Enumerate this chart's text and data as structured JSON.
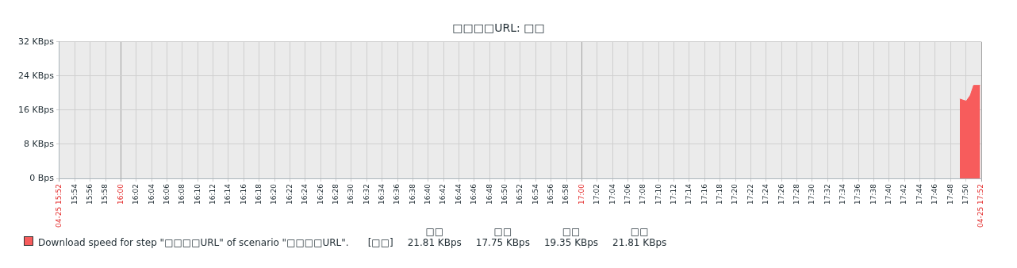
{
  "chart_data": {
    "type": "area",
    "title": "□□□□URL: □□",
    "x": [
      17.82,
      17.826,
      17.834,
      17.843,
      17.85,
      17.864
    ],
    "series": [
      {
        "name": "Download speed for step \"□□□□URL\" of scenario \"□□□□URL\".",
        "color": "#f75c5c",
        "values": [
          18.6,
          18.4,
          18.1,
          19.5,
          21.81,
          21.81
        ]
      }
    ],
    "xlim": [
      15.8667,
      17.8667
    ],
    "xticks": [
      {
        "value": 15.8667,
        "label": "04-25 15:52"
      },
      {
        "value": 15.9,
        "label": "15:54"
      },
      {
        "value": 15.9333,
        "label": "15:56"
      },
      {
        "value": 15.9667,
        "label": "15:58"
      },
      {
        "value": 16,
        "label": "16:00"
      },
      {
        "value": 16.0333,
        "label": "16:02"
      },
      {
        "value": 16.0667,
        "label": "16:04"
      },
      {
        "value": 16.1,
        "label": "16:06"
      },
      {
        "value": 16.1333,
        "label": "16:08"
      },
      {
        "value": 16.1667,
        "label": "16:10"
      },
      {
        "value": 16.2,
        "label": "16:12"
      },
      {
        "value": 16.2333,
        "label": "16:14"
      },
      {
        "value": 16.2667,
        "label": "16:16"
      },
      {
        "value": 16.3,
        "label": "16:18"
      },
      {
        "value": 16.3333,
        "label": "16:20"
      },
      {
        "value": 16.3667,
        "label": "16:22"
      },
      {
        "value": 16.4,
        "label": "16:24"
      },
      {
        "value": 16.4333,
        "label": "16:26"
      },
      {
        "value": 16.4667,
        "label": "16:28"
      },
      {
        "value": 16.5,
        "label": "16:30"
      },
      {
        "value": 16.5333,
        "label": "16:32"
      },
      {
        "value": 16.5667,
        "label": "16:34"
      },
      {
        "value": 16.6,
        "label": "16:36"
      },
      {
        "value": 16.6333,
        "label": "16:38"
      },
      {
        "value": 16.6667,
        "label": "16:40"
      },
      {
        "value": 16.7,
        "label": "16:42"
      },
      {
        "value": 16.7333,
        "label": "16:44"
      },
      {
        "value": 16.7667,
        "label": "16:46"
      },
      {
        "value": 16.8,
        "label": "16:48"
      },
      {
        "value": 16.8333,
        "label": "16:50"
      },
      {
        "value": 16.8667,
        "label": "16:52"
      },
      {
        "value": 16.9,
        "label": "16:54"
      },
      {
        "value": 16.9333,
        "label": "16:56"
      },
      {
        "value": 16.9667,
        "label": "16:58"
      },
      {
        "value": 17,
        "label": "17:00"
      },
      {
        "value": 17.0333,
        "label": "17:02"
      },
      {
        "value": 17.0667,
        "label": "17:04"
      },
      {
        "value": 17.1,
        "label": "17:06"
      },
      {
        "value": 17.1333,
        "label": "17:08"
      },
      {
        "value": 17.1667,
        "label": "17:10"
      },
      {
        "value": 17.2,
        "label": "17:12"
      },
      {
        "value": 17.2333,
        "label": "17:14"
      },
      {
        "value": 17.2667,
        "label": "17:16"
      },
      {
        "value": 17.3,
        "label": "17:18"
      },
      {
        "value": 17.3333,
        "label": "17:20"
      },
      {
        "value": 17.3667,
        "label": "17:22"
      },
      {
        "value": 17.4,
        "label": "17:24"
      },
      {
        "value": 17.4333,
        "label": "17:26"
      },
      {
        "value": 17.4667,
        "label": "17:28"
      },
      {
        "value": 17.5,
        "label": "17:30"
      },
      {
        "value": 17.5333,
        "label": "17:32"
      },
      {
        "value": 17.5667,
        "label": "17:34"
      },
      {
        "value": 17.6,
        "label": "17:36"
      },
      {
        "value": 17.6333,
        "label": "17:38"
      },
      {
        "value": 17.6667,
        "label": "17:40"
      },
      {
        "value": 17.7,
        "label": "17:42"
      },
      {
        "value": 17.7333,
        "label": "17:44"
      },
      {
        "value": 17.7667,
        "label": "17:46"
      },
      {
        "value": 17.8,
        "label": "17:48"
      },
      {
        "value": 17.8333,
        "label": "17:50"
      },
      {
        "value": 17.8667,
        "label": "04-25 17:52"
      }
    ],
    "ylim": [
      0,
      32
    ],
    "yticks": [
      {
        "value": 0,
        "label": "0 Bps"
      },
      {
        "value": 8,
        "label": "8 KBps"
      },
      {
        "value": 16,
        "label": "16 KBps"
      },
      {
        "value": 24,
        "label": "24 KBps"
      },
      {
        "value": 32,
        "label": "32 KBps"
      }
    ],
    "grid": true,
    "legend": "bottom left",
    "annotations": [
      "[□□]",
      "□□",
      "21.81 KBps",
      "□□",
      "17.75 KBps",
      "□□",
      "19.35 KBps",
      "□□",
      "21.81 KBps"
    ]
  }
}
